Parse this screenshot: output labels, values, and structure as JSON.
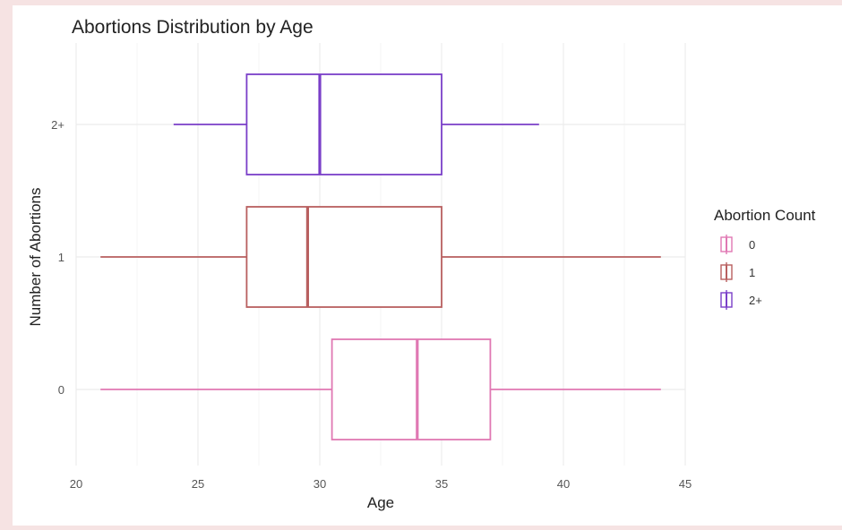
{
  "chart_data": {
    "type": "boxplot",
    "orientation": "horizontal",
    "title": "Abortions Distribution by Age",
    "xlabel": "Age",
    "ylabel": "Number of Abortions",
    "xlim": [
      20,
      45
    ],
    "xticks": [
      20,
      25,
      30,
      35,
      40,
      45
    ],
    "grid": true,
    "legend": {
      "title": "Abortion Count",
      "placement": "right"
    },
    "categories": [
      "0",
      "1",
      "2+"
    ],
    "series": [
      {
        "name": "0",
        "color": "#e078b3",
        "min": 21,
        "q1": 30.5,
        "median": 34,
        "q3": 37,
        "max": 44
      },
      {
        "name": "1",
        "color": "#b85f5f",
        "min": 21,
        "q1": 27,
        "median": 29.5,
        "q3": 35,
        "max": 44
      },
      {
        "name": "2+",
        "color": "#7a3fc8",
        "min": 24,
        "q1": 27,
        "median": 30,
        "q3": 35,
        "max": 39
      }
    ]
  }
}
